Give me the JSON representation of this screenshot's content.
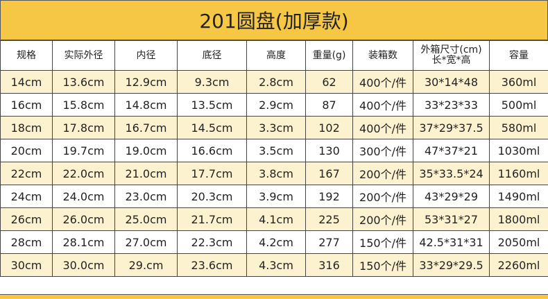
{
  "title": "201圆盘(加厚款)",
  "table": {
    "header": [
      "规格",
      "实际外径",
      "内径",
      "底径",
      "高度",
      "重量(g)",
      "装箱数",
      "外箱尺寸(cm)\n长*宽*高",
      "容量"
    ],
    "rows": [
      [
        "14cm",
        "13.6cm",
        "12.9cm",
        "9.3cm",
        "2.8cm",
        "62",
        "400个/件",
        "30*14*48",
        "360ml"
      ],
      [
        "16cm",
        "15.8cm",
        "14.8cm",
        "13.5cm",
        "2.9cm",
        "87",
        "400个/件",
        "33*23*33",
        "500ml"
      ],
      [
        "18cm",
        "17.8cm",
        "16.7cm",
        "14.5cm",
        "3.3cm",
        "102",
        "400个/件",
        "37*29*37.5",
        "580ml"
      ],
      [
        "20cm",
        "19.7cm",
        "19.0cm",
        "16.6cm",
        "3.5cm",
        "130",
        "300个/件",
        "47*37*21",
        "1030ml"
      ],
      [
        "22cm",
        "22.0cm",
        "21.0cm",
        "17.7cm",
        "3.8cm",
        "167",
        "200个/件",
        "35*33.5*24",
        "1160ml"
      ],
      [
        "24cm",
        "24.0cm",
        "23.0cm",
        "20.3cm",
        "3.9cm",
        "192",
        "200个/件",
        "43*29*29",
        "1490ml"
      ],
      [
        "26cm",
        "26.0cm",
        "25.0cm",
        "21.7cm",
        "4.1cm",
        "225",
        "200个/件",
        "53*31*27",
        "1800ml"
      ],
      [
        "28cm",
        "28.1cm",
        "27.0cm",
        "22.3cm",
        "4.2cm",
        "277",
        "150个/件",
        "42.5*31*31",
        "2050ml"
      ],
      [
        "30cm",
        "30.0cm",
        "29.cm",
        "23.6cm",
        "4.3cm",
        "316",
        "150个/件",
        "33*29*29.5",
        "2260ml"
      ]
    ]
  }
}
